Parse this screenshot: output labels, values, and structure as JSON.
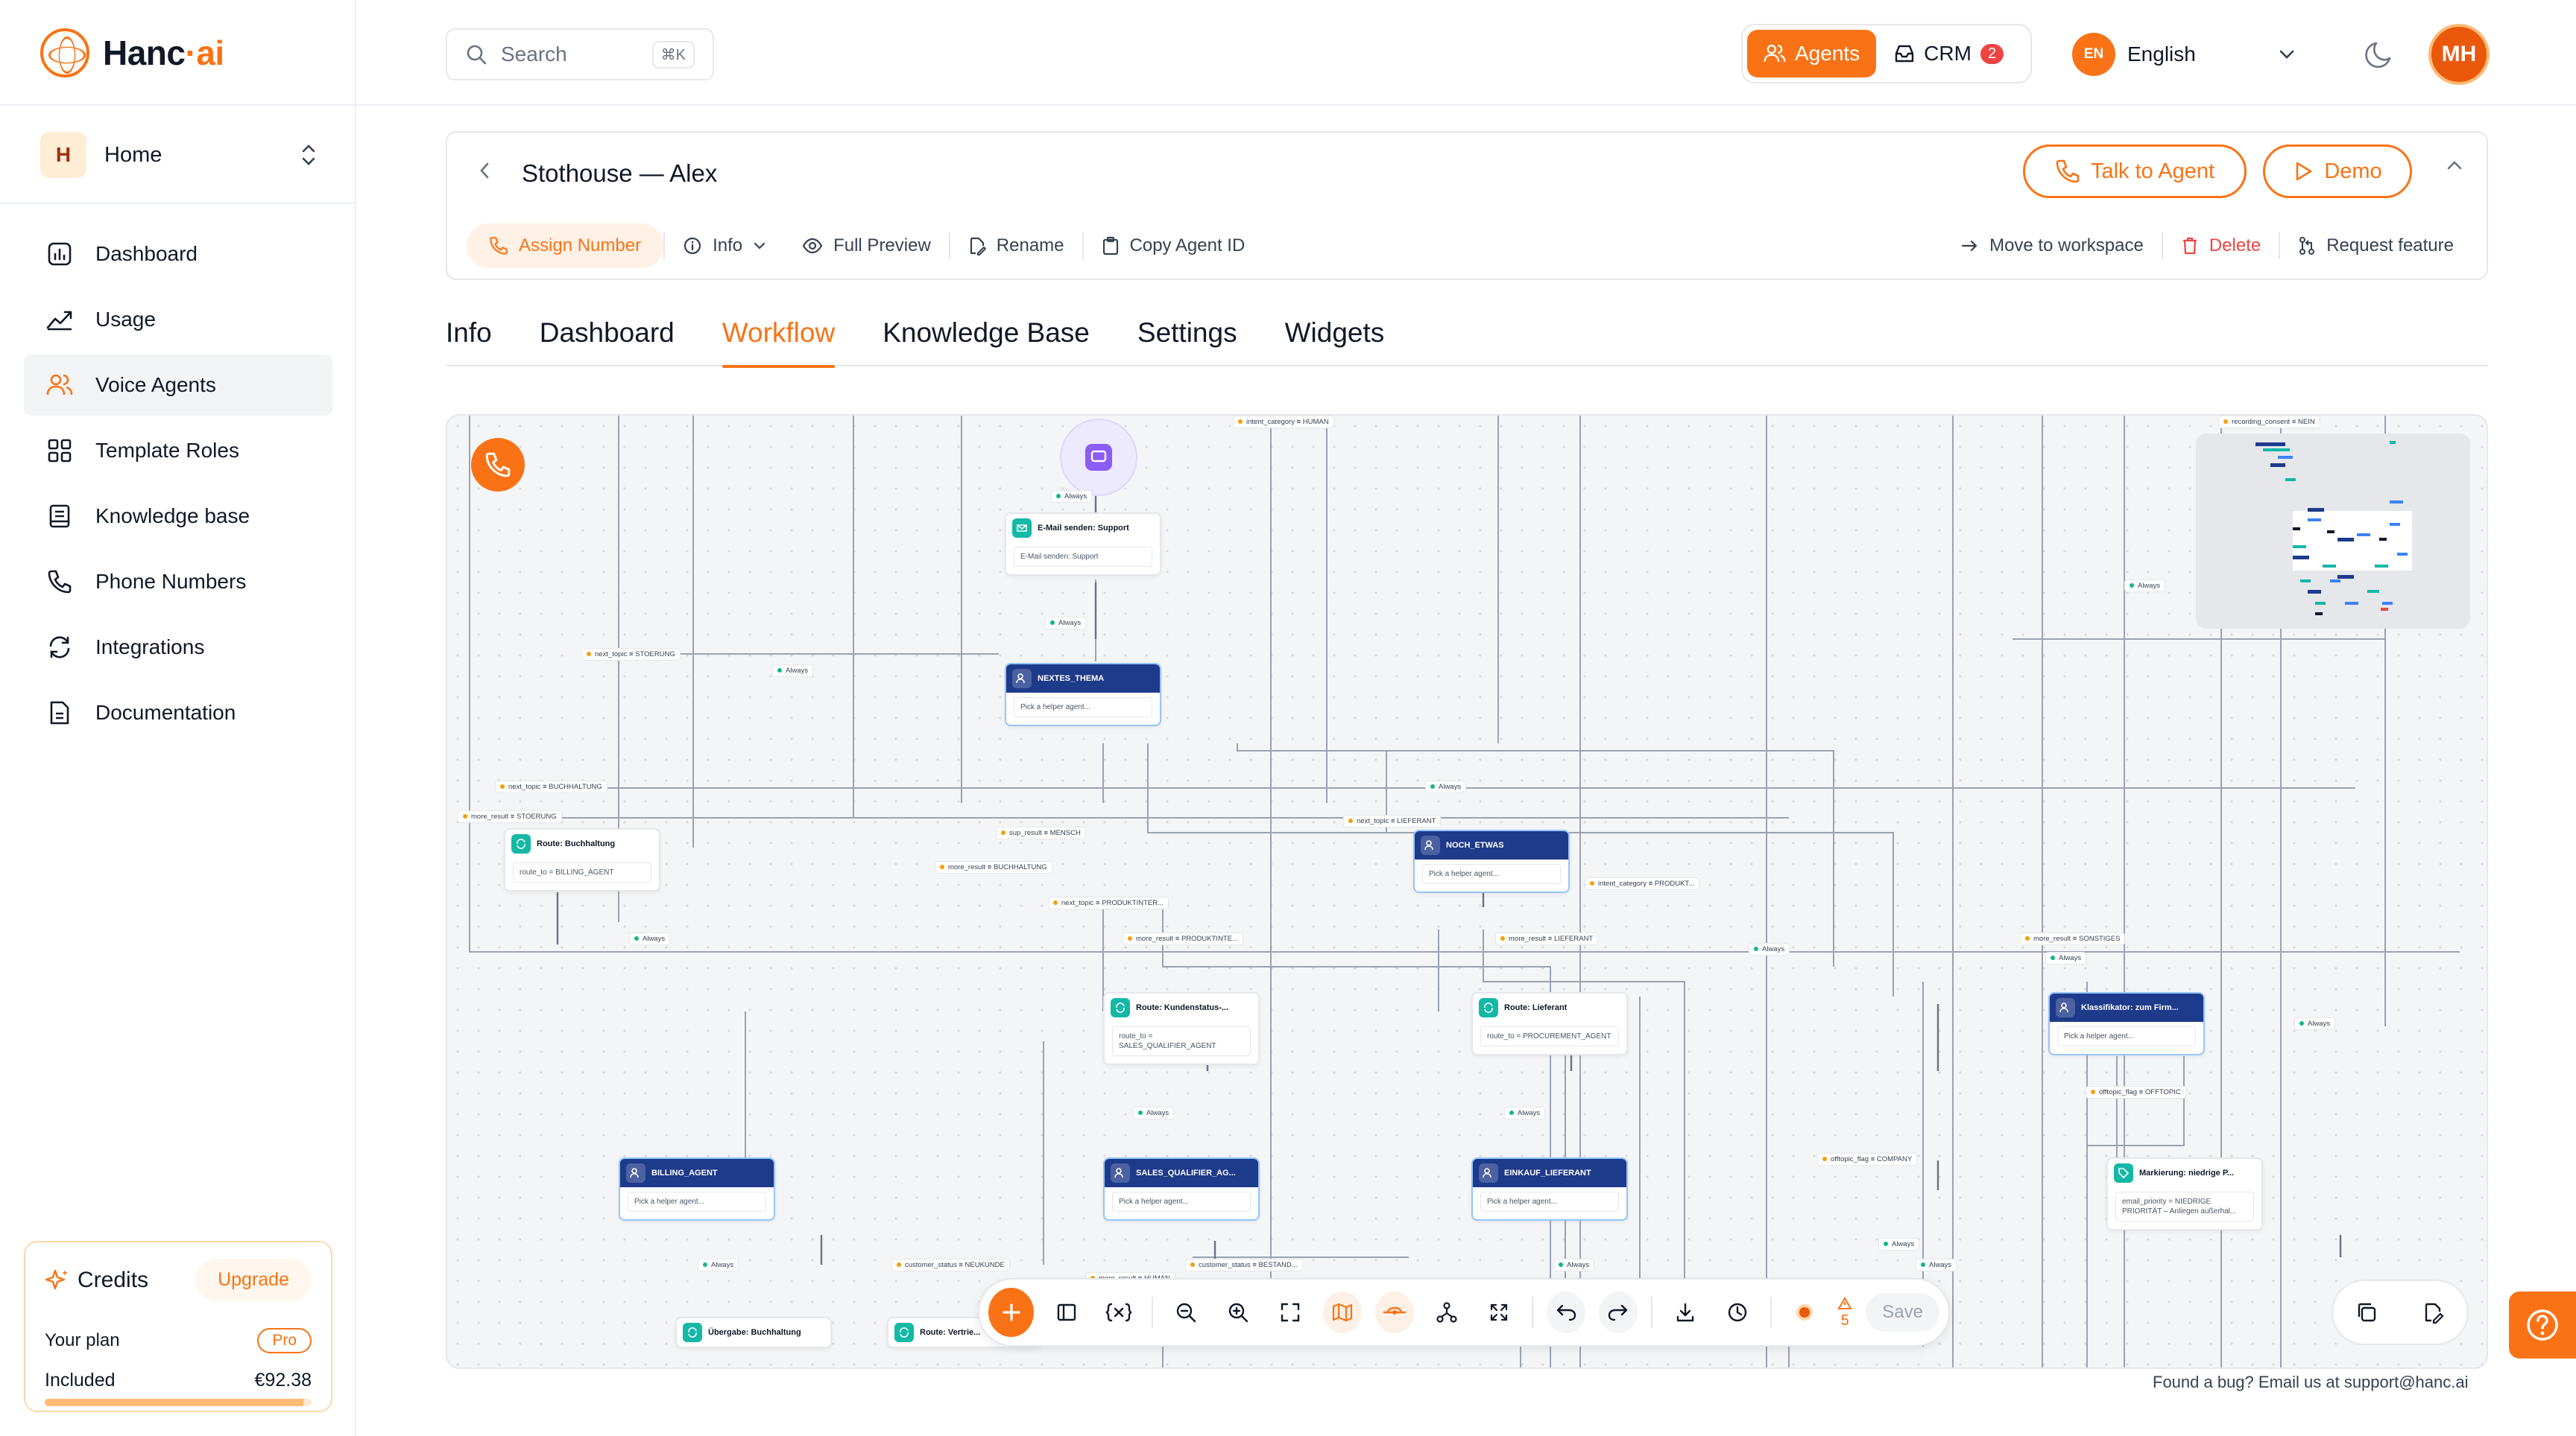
{
  "brand": {
    "name_part1": "Hanc",
    "name_sep": "·",
    "name_part2": "ai"
  },
  "workspace": {
    "initial": "H",
    "name": "Home"
  },
  "sidebar": {
    "items": [
      {
        "label": "Dashboard",
        "icon": "dashboard-icon"
      },
      {
        "label": "Usage",
        "icon": "usage-chart-icon"
      },
      {
        "label": "Voice Agents",
        "icon": "users-icon",
        "active": true
      },
      {
        "label": "Template Roles",
        "icon": "grid-icon"
      },
      {
        "label": "Knowledge base",
        "icon": "book-icon"
      },
      {
        "label": "Phone Numbers",
        "icon": "phone-icon"
      },
      {
        "label": "Integrations",
        "icon": "refresh-icon"
      },
      {
        "label": "Documentation",
        "icon": "document-icon"
      }
    ]
  },
  "credits": {
    "title": "Credits",
    "upgrade_label": "Upgrade",
    "plan_label": "Your plan",
    "plan_badge": "Pro",
    "included_label": "Included",
    "included_value": "€92.38",
    "usage_fraction": 0.97
  },
  "topbar": {
    "search_placeholder": "Search",
    "search_shortcut": "⌘K",
    "agents_label": "Agents",
    "crm_label": "CRM",
    "crm_badge": "2",
    "lang_code": "EN",
    "lang_label": "English",
    "user_initials": "MH"
  },
  "agent": {
    "title": "Stothouse — Alex",
    "talk_label": "Talk to Agent",
    "demo_label": "Demo",
    "actions": {
      "assign": "Assign Number",
      "info": "Info",
      "preview": "Full Preview",
      "rename": "Rename",
      "copy_id": "Copy Agent ID",
      "move": "Move to workspace",
      "delete": "Delete",
      "request": "Request feature"
    }
  },
  "tabs": [
    {
      "label": "Info"
    },
    {
      "label": "Dashboard"
    },
    {
      "label": "Workflow",
      "active": true
    },
    {
      "label": "Knowledge Base"
    },
    {
      "label": "Settings"
    },
    {
      "label": "Widgets"
    }
  ],
  "workflow": {
    "nodes": [
      {
        "title": "E-Mail senden: Support",
        "body": "E-Mail senden: Support",
        "kind": "action"
      },
      {
        "title": "NEXTES_THEMA",
        "body": "Pick a helper agent...",
        "kind": "helper"
      },
      {
        "title": "Route: Buchhaltung",
        "body": "route_to = BILLING_AGENT",
        "kind": "action"
      },
      {
        "title": "NOCH_ETWAS",
        "body": "Pick a helper agent...",
        "kind": "helper"
      },
      {
        "title": "Route: Kundenstatus-...",
        "body": "route_to = SALES_QUALIFIER_AGENT",
        "kind": "action"
      },
      {
        "title": "Route: Lieferant",
        "body": "route_to = PROCUREMENT_AGENT",
        "kind": "action"
      },
      {
        "title": "Klassifikator: zum Firm...",
        "body": "Pick a helper agent...",
        "kind": "helper"
      },
      {
        "title": "BILLING_AGENT",
        "body": "Pick a helper agent...",
        "kind": "helper"
      },
      {
        "title": "SALES_QUALIFIER_AG...",
        "body": "Pick a helper agent...",
        "kind": "helper"
      },
      {
        "title": "EINKAUF_LIEFERANT",
        "body": "Pick a helper agent...",
        "kind": "helper"
      },
      {
        "title": "Markierung: niedrige P...",
        "body": "email_priority = NIEDRIGE PRIORITÄT – Anliegen außerhal...",
        "kind": "action"
      },
      {
        "title": "Übergabe: Buchhaltung",
        "body": "",
        "kind": "action"
      },
      {
        "title": "Route: Vertrie...",
        "body": "",
        "kind": "action"
      }
    ],
    "edge_labels": [
      "Always",
      "intent_category ≡ HUMAN",
      "recording_consent ≡ NEIN",
      "next_topic ≡ STOERUNG",
      "next_topic ≡ BUCHHALTUNG",
      "more_result ≡ STOERUNG",
      "sup_result ≡ MENSCH",
      "more_result ≡ BUCHHALTUNG",
      "next_topic ≡ PRODUKTINTER...",
      "next_topic ≡ LIEFERANT",
      "intent_category ≡ PRODUKT...",
      "more_result ≡ PRODUKTINTE...",
      "more_result ≡ LIEFERANT",
      "more_result ≡ SONSTIGES",
      "offtopic_flag ≡ OFFTOPIC",
      "offtopic_flag ≡ COMPANY",
      "customer_status ≡ NEUKUNDE",
      "customer_status ≡ BESTAND...",
      "more_result ≡ HUMAN"
    ],
    "toolbar": {
      "save_label": "Save",
      "warning_count": "5"
    }
  },
  "footer": {
    "bug_note": "Found a bug? Email us at support@hanc.ai"
  },
  "colors": {
    "accent": "#f97316",
    "helper_node": "#1e3a8a",
    "action_icon": "#14b8a6"
  }
}
